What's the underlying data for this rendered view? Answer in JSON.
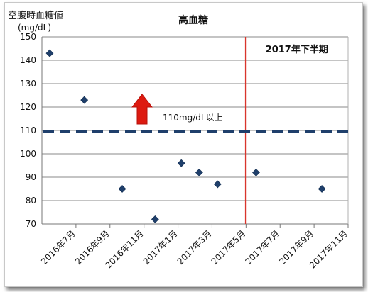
{
  "chart_data": {
    "type": "scatter",
    "title": "高血糖",
    "ylabel": "空腹時血糖値",
    "yunit": "(mg/dL)",
    "ylim": [
      70,
      150
    ],
    "yticks": [
      70,
      80,
      90,
      100,
      110,
      120,
      130,
      140,
      150
    ],
    "xticks": [
      "2016年7月",
      "2016年9月",
      "2016年11月",
      "2017年1月",
      "2017年3月",
      "2017年5月",
      "2017年7月",
      "2017年9月",
      "2017年11月"
    ],
    "grid": true,
    "series": [
      {
        "x": [
          "2016-07-15",
          "2016-09-15",
          "2016-11-22",
          "2017-01-20",
          "2017-03-08",
          "2017-04-09",
          "2017-05-12",
          "2017-07-20",
          "2017-11-15"
        ],
        "values": [
          143,
          123,
          85,
          72,
          96,
          92,
          87,
          92,
          85
        ],
        "color": "#1f3f6b"
      }
    ],
    "threshold": {
      "value": 109.5,
      "label": "110mg/dL以上",
      "color": "#1f3f6b"
    },
    "divider": {
      "x": "2017-07-01",
      "label": "2017年下半期",
      "color": "#d9352c"
    },
    "arrow_color": "#dd1a10"
  }
}
